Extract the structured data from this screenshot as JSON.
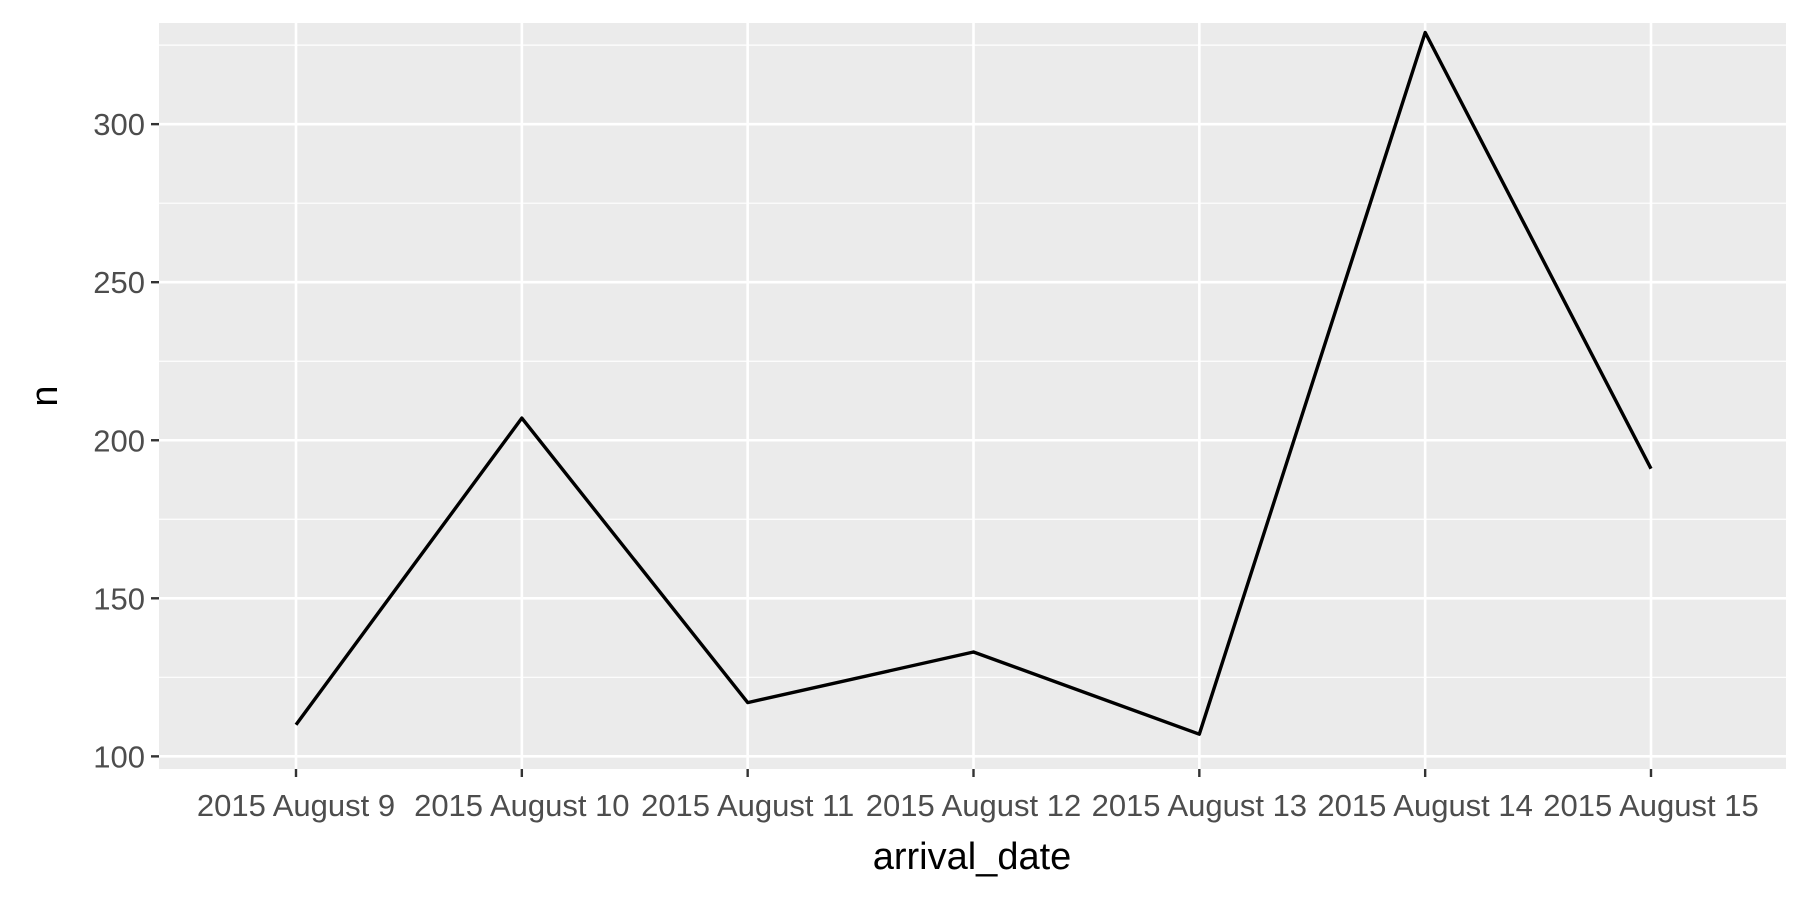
{
  "chart_data": {
    "type": "line",
    "title": "",
    "xlabel": "arrival_date",
    "ylabel": "n",
    "categories": [
      "2015 August 9",
      "2015 August 10",
      "2015 August 11",
      "2015 August 12",
      "2015 August 13",
      "2015 August 14",
      "2015 August 15"
    ],
    "series": [
      {
        "name": "n",
        "values": [
          110,
          207,
          117,
          133,
          107,
          329,
          191
        ]
      }
    ],
    "ylim": [
      96,
      332
    ],
    "yticks": [
      100,
      150,
      200,
      250,
      300
    ],
    "ytick_labels": [
      "100",
      "150",
      "200",
      "250",
      "300"
    ],
    "grid": true,
    "legend": "none",
    "colors": {
      "panel": "#ebebeb",
      "grid": "#ffffff",
      "line": "#000000",
      "tick_text": "#4d4d4d",
      "axis_text": "#000000"
    }
  }
}
